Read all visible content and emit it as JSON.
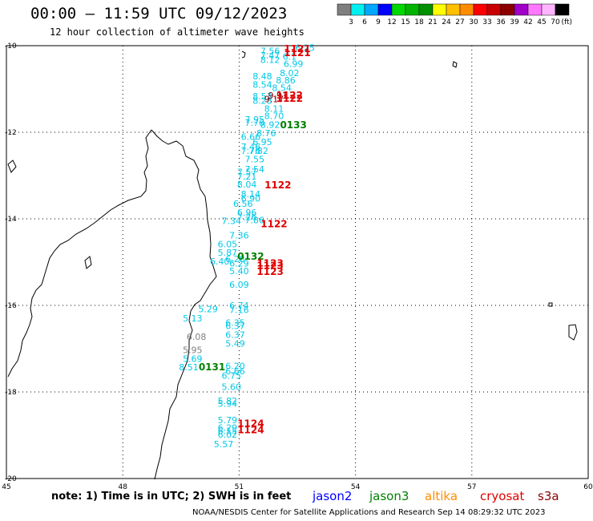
{
  "title": "00:00 – 11:59 UTC 09/12/2023",
  "subtitle": "12 hour collection of altimeter wave heights",
  "note": "note:  1) Time is in UTC;  2) SWH is in feet",
  "credit": "NOAA/NESDIS Center for Satellite Applications and Research    Sep 14 08:29:32 UTC 2023",
  "legend": {
    "unit": "(ft)",
    "colors": [
      "#7f7f7f",
      "#00f0f0",
      "#00a8ff",
      "#0000ff",
      "#00d800",
      "#00b400",
      "#009000",
      "#ffff00",
      "#ffc000",
      "#ff8c00",
      "#ff0000",
      "#c80000",
      "#8c0000",
      "#a000c8",
      "#ff78ff",
      "#ffb4ff",
      "#000000"
    ],
    "labels": [
      "3",
      "6",
      "9",
      "12",
      "15",
      "18",
      "21",
      "24",
      "27",
      "30",
      "33",
      "36",
      "39",
      "42",
      "45",
      "70"
    ]
  },
  "satellites": [
    {
      "name": "jason2",
      "color": "#0000ff"
    },
    {
      "name": "jason3",
      "color": "#008000"
    },
    {
      "name": "altika",
      "color": "#ff8c00"
    },
    {
      "name": "cryosat",
      "color": "#e00000"
    },
    {
      "name": "s3a",
      "color": "#8c0000"
    }
  ],
  "axes": {
    "lon_ticks": [
      "45",
      "48",
      "51",
      "54",
      "57",
      "60"
    ],
    "lat_ticks": [
      "-10",
      "-12",
      "-14",
      "-16",
      "-18",
      "-20"
    ]
  },
  "chart_data": {
    "type": "scatter",
    "title": "00:00 – 11:59 UTC 09/12/2023",
    "subtitle": "12 hour collection of altimeter wave heights",
    "xlim": [
      45,
      60
    ],
    "ylim": [
      -20,
      -10
    ],
    "units": "ft",
    "observations": [
      {
        "lon": 52.7,
        "lat": -10.05,
        "v": "6.25",
        "c": "#00c8e8"
      },
      {
        "lon": 51.8,
        "lat": -10.12,
        "v": "7.56",
        "c": "#00c8e8"
      },
      {
        "lon": 51.8,
        "lat": -10.22,
        "v": "7.47",
        "c": "#00c8e8"
      },
      {
        "lon": 51.8,
        "lat": -10.32,
        "v": "8.12",
        "c": "#00c8e8"
      },
      {
        "lon": 52.3,
        "lat": -10.25,
        "v": "6.1",
        "c": "#00c8e8"
      },
      {
        "lon": 52.4,
        "lat": -10.42,
        "v": "6.99",
        "c": "#00c8e8"
      },
      {
        "lon": 52.3,
        "lat": -10.63,
        "v": "8.02",
        "c": "#00c8e8"
      },
      {
        "lon": 51.6,
        "lat": -10.7,
        "v": "8.48",
        "c": "#00c8e8"
      },
      {
        "lon": 52.2,
        "lat": -10.8,
        "v": "8.86",
        "c": "#00c8e8"
      },
      {
        "lon": 51.6,
        "lat": -10.9,
        "v": "8.54",
        "c": "#00c8e8"
      },
      {
        "lon": 52.1,
        "lat": -10.97,
        "v": "8.54",
        "c": "#00c8e8"
      },
      {
        "lon": 51.6,
        "lat": -11.17,
        "v": "8.53",
        "c": "#00c8e8"
      },
      {
        "lon": 51.6,
        "lat": -11.27,
        "v": "8.28",
        "c": "#00c8e8"
      },
      {
        "lon": 52.0,
        "lat": -11.15,
        "v": "9.91",
        "c": "#8c0000"
      },
      {
        "lon": 51.9,
        "lat": -11.23,
        "v": "9.17",
        "c": "#8c0000"
      },
      {
        "lon": 51.9,
        "lat": -11.45,
        "v": "8.11",
        "c": "#00c8e8"
      },
      {
        "lon": 51.9,
        "lat": -11.62,
        "v": "8.70",
        "c": "#00c8e8"
      },
      {
        "lon": 51.4,
        "lat": -11.7,
        "v": "7.95",
        "c": "#00c8e8"
      },
      {
        "lon": 51.4,
        "lat": -11.78,
        "v": "7.76",
        "c": "#00c8e8"
      },
      {
        "lon": 51.8,
        "lat": -11.82,
        "v": "8.92",
        "c": "#00c8e8"
      },
      {
        "lon": 51.7,
        "lat": -12.02,
        "v": "8.76",
        "c": "#00c8e8"
      },
      {
        "lon": 51.3,
        "lat": -12.1,
        "v": "6.66",
        "c": "#00c8e8"
      },
      {
        "lon": 51.6,
        "lat": -12.22,
        "v": "6.95",
        "c": "#00c8e8"
      },
      {
        "lon": 51.3,
        "lat": -12.33,
        "v": "7.46",
        "c": "#00c8e8"
      },
      {
        "lon": 51.3,
        "lat": -12.43,
        "v": "7.76",
        "c": "#00c8e8"
      },
      {
        "lon": 51.5,
        "lat": -12.43,
        "v": "7.82",
        "c": "#00c8e8"
      },
      {
        "lon": 51.4,
        "lat": -12.62,
        "v": "7.55",
        "c": "#00c8e8"
      },
      {
        "lon": 51.4,
        "lat": -12.85,
        "v": "7.54",
        "c": "#00c8e8"
      },
      {
        "lon": 51.2,
        "lat": -12.92,
        "v": "7.57",
        "c": "#00c8e8"
      },
      {
        "lon": 51.2,
        "lat": -13.02,
        "v": "7.21",
        "c": "#00c8e8"
      },
      {
        "lon": 51.2,
        "lat": -13.2,
        "v": "8.04",
        "c": "#00c8e8"
      },
      {
        "lon": 51.3,
        "lat": -13.43,
        "v": "8.14",
        "c": "#00c8e8"
      },
      {
        "lon": 51.3,
        "lat": -13.53,
        "v": "6.90",
        "c": "#00c8e8"
      },
      {
        "lon": 51.1,
        "lat": -13.65,
        "v": "6.56",
        "c": "#00c8e8"
      },
      {
        "lon": 51.2,
        "lat": -13.85,
        "v": "6.96",
        "c": "#00c8e8"
      },
      {
        "lon": 51.2,
        "lat": -13.95,
        "v": "7.26",
        "c": "#00c8e8"
      },
      {
        "lon": 51.4,
        "lat": -14.03,
        "v": "7.86",
        "c": "#00c8e8"
      },
      {
        "lon": 50.8,
        "lat": -14.05,
        "v": "7.34",
        "c": "#00c8e8"
      },
      {
        "lon": 51.0,
        "lat": -14.38,
        "v": "7.36",
        "c": "#00c8e8"
      },
      {
        "lon": 50.7,
        "lat": -14.58,
        "v": "6.05",
        "c": "#00c8e8"
      },
      {
        "lon": 50.7,
        "lat": -14.78,
        "v": "5.87",
        "c": "#00c8e8"
      },
      {
        "lon": 50.5,
        "lat": -14.98,
        "v": "6.40",
        "c": "#00c8e8"
      },
      {
        "lon": 51.0,
        "lat": -15.03,
        "v": "6.29",
        "c": "#00c8e8"
      },
      {
        "lon": 50.9,
        "lat": -14.93,
        "v": "6.28",
        "c": "#00c8e8"
      },
      {
        "lon": 51.0,
        "lat": -15.2,
        "v": "5.40",
        "c": "#00c8e8"
      },
      {
        "lon": 51.0,
        "lat": -15.52,
        "v": "6.09",
        "c": "#00c8e8"
      },
      {
        "lon": 51.0,
        "lat": -16.0,
        "v": "6.74",
        "c": "#00c8e8"
      },
      {
        "lon": 50.2,
        "lat": -16.08,
        "v": "5.29",
        "c": "#00c8e8"
      },
      {
        "lon": 51.0,
        "lat": -16.1,
        "v": "7.16",
        "c": "#00c8e8"
      },
      {
        "lon": 49.8,
        "lat": -16.3,
        "v": "5.13",
        "c": "#00c8e8"
      },
      {
        "lon": 50.9,
        "lat": -16.4,
        "v": "6.35",
        "c": "#00c8e8"
      },
      {
        "lon": 50.9,
        "lat": -16.47,
        "v": "6.37",
        "c": "#00c8e8"
      },
      {
        "lon": 49.9,
        "lat": -16.72,
        "v": "6.08",
        "c": "#808080"
      },
      {
        "lon": 50.9,
        "lat": -16.68,
        "v": "6.37",
        "c": "#00c8e8"
      },
      {
        "lon": 50.9,
        "lat": -16.88,
        "v": "5.49",
        "c": "#00c8e8"
      },
      {
        "lon": 49.8,
        "lat": -17.03,
        "v": "5.95",
        "c": "#808080"
      },
      {
        "lon": 49.8,
        "lat": -17.23,
        "v": "5.69",
        "c": "#00c8e8"
      },
      {
        "lon": 49.7,
        "lat": -17.43,
        "v": "8.51",
        "c": "#00c8e8"
      },
      {
        "lon": 50.9,
        "lat": -17.4,
        "v": "6.20",
        "c": "#00c8e8"
      },
      {
        "lon": 50.9,
        "lat": -17.52,
        "v": "6.66",
        "c": "#00c8e8"
      },
      {
        "lon": 50.8,
        "lat": -17.62,
        "v": "6.75",
        "c": "#00c8e8"
      },
      {
        "lon": 50.8,
        "lat": -17.88,
        "v": "5.60",
        "c": "#00c8e8"
      },
      {
        "lon": 50.7,
        "lat": -18.2,
        "v": "5.82",
        "c": "#00c8e8"
      },
      {
        "lon": 50.7,
        "lat": -18.27,
        "v": "5.94",
        "c": "#00c8e8"
      },
      {
        "lon": 50.7,
        "lat": -18.65,
        "v": "5.79",
        "c": "#00c8e8"
      },
      {
        "lon": 50.7,
        "lat": -18.82,
        "v": "6.29",
        "c": "#00c8e8"
      },
      {
        "lon": 50.7,
        "lat": -18.9,
        "v": "6.15",
        "c": "#00c8e8"
      },
      {
        "lon": 50.7,
        "lat": -18.98,
        "v": "6.02",
        "c": "#00c8e8"
      },
      {
        "lon": 50.6,
        "lat": -19.2,
        "v": "5.57",
        "c": "#00c8e8"
      }
    ],
    "passes": [
      {
        "lon": 52.5,
        "lat": -10.07,
        "v": "1121",
        "c": "#e00000"
      },
      {
        "lon": 52.5,
        "lat": -10.17,
        "v": "1121",
        "c": "#e00000"
      },
      {
        "lon": 52.3,
        "lat": -11.15,
        "v": "1122",
        "c": "#e00000"
      },
      {
        "lon": 52.3,
        "lat": -11.22,
        "v": "1122",
        "c": "#e00000"
      },
      {
        "lon": 52.4,
        "lat": -11.83,
        "v": "0133",
        "c": "#008000"
      },
      {
        "lon": 52.0,
        "lat": -13.22,
        "v": "1122",
        "c": "#e00000"
      },
      {
        "lon": 51.9,
        "lat": -14.12,
        "v": "1122",
        "c": "#e00000"
      },
      {
        "lon": 51.3,
        "lat": -14.87,
        "v": "0132",
        "c": "#008000"
      },
      {
        "lon": 51.8,
        "lat": -15.03,
        "v": "1123",
        "c": "#e00000"
      },
      {
        "lon": 51.8,
        "lat": -15.08,
        "v": "1123",
        "c": "#e00000"
      },
      {
        "lon": 51.8,
        "lat": -15.22,
        "v": "1123",
        "c": "#e00000"
      },
      {
        "lon": 50.3,
        "lat": -17.43,
        "v": "0131",
        "c": "#008000"
      },
      {
        "lon": 51.3,
        "lat": -18.73,
        "v": "1124",
        "c": "#e00000"
      },
      {
        "lon": 51.3,
        "lat": -18.88,
        "v": "1124",
        "c": "#e00000"
      }
    ]
  }
}
